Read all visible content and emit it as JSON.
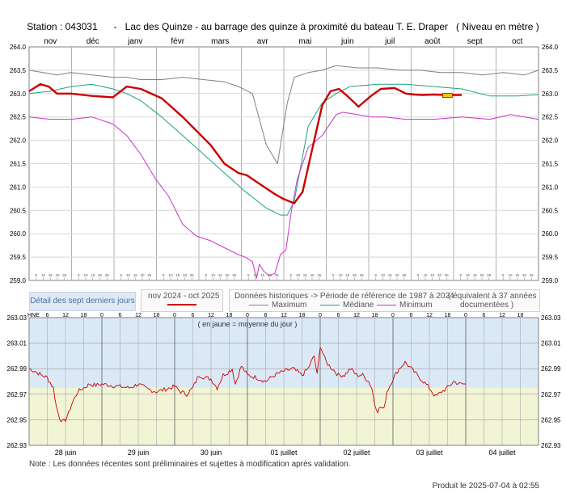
{
  "header": {
    "station": "Station : 043031",
    "title": "Lac des Quinze - au barrage des quinze à proximité du bateau T. E. Draper   ( Niveau en mètre )"
  },
  "chart_data": [
    {
      "type": "line",
      "months": [
        "nov",
        "déc",
        "janv",
        "févr",
        "mars",
        "avr",
        "mai",
        "juin",
        "juil",
        "août",
        "sept",
        "oct"
      ],
      "y_ticks": [
        "259.0",
        "259.5",
        "260.0",
        "260.5",
        "261.0",
        "261.5",
        "262.0",
        "262.5",
        "263.0",
        "263.5",
        "264.0"
      ],
      "ylim": [
        259.0,
        264.0
      ],
      "xlim": [
        0,
        365
      ],
      "colors": {
        "recent": "#cc0000",
        "maximum": "#808080",
        "mediane": "#20a080",
        "minimum": "#cc33cc",
        "latest": "#f0c800"
      },
      "series": [
        {
          "name": "nov 2024 - oct 2025",
          "key": "recent",
          "x": [
            0,
            8,
            14,
            20,
            30,
            45,
            60,
            70,
            80,
            95,
            110,
            120,
            130,
            140,
            150,
            156,
            166,
            176,
            182,
            190,
            196,
            202,
            210,
            216,
            222,
            228,
            234,
            236,
            245,
            252,
            262,
            270,
            276,
            282,
            290,
            298,
            305,
            310
          ],
          "y": [
            263.05,
            263.2,
            263.15,
            263.0,
            263.0,
            262.95,
            262.92,
            263.15,
            263.1,
            262.9,
            262.5,
            262.2,
            261.9,
            261.5,
            261.3,
            261.25,
            261.05,
            260.85,
            260.75,
            260.65,
            260.9,
            261.7,
            262.75,
            263.05,
            263.1,
            262.95,
            262.78,
            262.72,
            262.95,
            263.1,
            263.12,
            263.0,
            262.98,
            262.97,
            262.98,
            262.97,
            262.97,
            262.97
          ]
        },
        {
          "name": "Maximum",
          "key": "maximum",
          "x": [
            0,
            10,
            20,
            30,
            45,
            60,
            70,
            80,
            95,
            110,
            125,
            140,
            150,
            160,
            170,
            178,
            185,
            190,
            195,
            200,
            210,
            220,
            235,
            250,
            265,
            280,
            295,
            310,
            325,
            340,
            355,
            365
          ],
          "y": [
            263.5,
            263.45,
            263.4,
            263.45,
            263.4,
            263.35,
            263.35,
            263.3,
            263.3,
            263.35,
            263.3,
            263.25,
            263.15,
            263.0,
            261.9,
            261.5,
            262.8,
            263.35,
            263.4,
            263.45,
            263.5,
            263.6,
            263.55,
            263.55,
            263.5,
            263.5,
            263.45,
            263.45,
            263.4,
            263.45,
            263.4,
            263.5
          ]
        },
        {
          "name": "Médiane",
          "key": "mediane",
          "x": [
            0,
            15,
            30,
            45,
            60,
            70,
            80,
            95,
            110,
            125,
            140,
            155,
            170,
            180,
            185,
            190,
            195,
            200,
            210,
            220,
            230,
            250,
            270,
            290,
            310,
            330,
            350,
            365
          ],
          "y": [
            263.0,
            263.05,
            263.15,
            263.2,
            263.1,
            263.0,
            262.85,
            262.5,
            262.1,
            261.7,
            261.3,
            260.9,
            260.55,
            260.4,
            260.4,
            260.7,
            261.5,
            262.3,
            262.8,
            263.0,
            263.15,
            263.2,
            263.2,
            263.15,
            263.1,
            262.95,
            262.95,
            262.98
          ]
        },
        {
          "name": "Minimum",
          "key": "minimum",
          "x": [
            0,
            15,
            30,
            45,
            55,
            60,
            70,
            80,
            90,
            100,
            110,
            120,
            130,
            140,
            150,
            155,
            160,
            163,
            165,
            168,
            172,
            176,
            180,
            184,
            188,
            192,
            196,
            200,
            210,
            220,
            225,
            235,
            245,
            255,
            270,
            290,
            310,
            330,
            345,
            355,
            365
          ],
          "y": [
            262.5,
            262.45,
            262.45,
            262.5,
            262.4,
            262.35,
            262.1,
            261.7,
            261.2,
            260.8,
            260.2,
            259.95,
            259.85,
            259.7,
            259.55,
            259.5,
            259.4,
            259.05,
            259.35,
            259.2,
            259.1,
            259.15,
            259.55,
            259.65,
            260.5,
            261.15,
            261.5,
            261.85,
            262.1,
            262.55,
            262.6,
            262.55,
            262.5,
            262.5,
            262.45,
            262.45,
            262.5,
            262.45,
            262.55,
            262.5,
            262.45
          ]
        }
      ],
      "latest_value": 262.97
    },
    {
      "type": "line",
      "name": "Détail des sept derniers jours",
      "annotation": "( en jaune = moyenne du jour )",
      "hne_label": "HNE",
      "hour_ticks": [
        "6",
        "12",
        "18",
        "0",
        "6",
        "12",
        "18",
        "0",
        "6",
        "12",
        "18",
        "0",
        "6",
        "12",
        "18",
        "0",
        "6",
        "12",
        "18",
        "0",
        "6",
        "12",
        "18",
        "0",
        "6",
        "12",
        "18"
      ],
      "day_labels": [
        "28 juin",
        "29 juin",
        "30 juin",
        "01 juillet",
        "02 juillet",
        "03 juillet",
        "04 juillet"
      ],
      "y_ticks": [
        "262.93",
        "262.95",
        "262.97",
        "262.99",
        "263.01",
        "263.03"
      ],
      "ylim": [
        262.93,
        263.03
      ],
      "xlim_hours": [
        0,
        168
      ],
      "daily_mean": 262.975,
      "colors": {
        "trace": "#cc0000",
        "band_above": "#dbe9f7",
        "band_below": "#f2f5d5"
      },
      "x_hours": [
        0,
        2,
        4,
        6,
        8,
        9,
        10,
        11,
        12,
        13,
        14,
        16,
        18,
        20,
        22,
        24,
        27,
        30,
        33,
        36,
        39,
        42,
        45,
        48,
        50,
        52,
        54,
        56,
        58,
        60,
        62,
        64,
        66,
        67,
        68,
        69,
        70,
        72,
        75,
        78,
        81,
        84,
        87,
        90,
        92,
        93,
        94,
        95,
        96,
        98,
        100,
        102,
        104,
        106,
        108,
        110,
        112,
        113,
        114,
        115,
        116,
        117,
        118,
        120,
        122,
        124,
        126,
        128,
        130,
        132,
        134,
        136,
        138,
        140,
        142,
        144
      ],
      "values": [
        262.99,
        262.988,
        262.985,
        262.983,
        262.975,
        262.96,
        262.952,
        262.948,
        262.95,
        262.955,
        262.962,
        262.972,
        262.975,
        262.978,
        262.977,
        262.978,
        262.977,
        262.976,
        262.975,
        262.978,
        262.974,
        262.972,
        262.974,
        262.976,
        262.972,
        262.97,
        262.975,
        262.985,
        262.983,
        262.982,
        262.975,
        262.985,
        262.988,
        262.99,
        262.978,
        262.985,
        262.992,
        262.985,
        262.983,
        262.98,
        262.985,
        262.988,
        262.99,
        262.985,
        262.99,
        262.995,
        263.0,
        262.985,
        263.008,
        262.995,
        262.99,
        262.985,
        262.985,
        262.99,
        262.985,
        262.985,
        262.98,
        262.975,
        262.962,
        262.957,
        262.96,
        262.958,
        262.972,
        262.982,
        262.99,
        262.995,
        262.99,
        262.985,
        262.98,
        262.975,
        262.968,
        262.972,
        262.975,
        262.98,
        262.978,
        262.978
      ]
    }
  ],
  "legend": {
    "detail_button": "Détail des sept derniers jours",
    "recent_label": "nov 2024 - oct 2025",
    "historical_label": "Données historiques -> Période de référence  de 1987 à 2024",
    "equiv_label": "( équivalent à 37 années",
    "documented_label": "documentées )",
    "maximum": "Maximum",
    "mediane": "Médiane",
    "minimum": "Minimum"
  },
  "footer": {
    "note": "Note : Les données récentes sont préliminaires et sujettes à modification après validation.",
    "produced": "Produit le 2025-07-04 à 02:55"
  }
}
